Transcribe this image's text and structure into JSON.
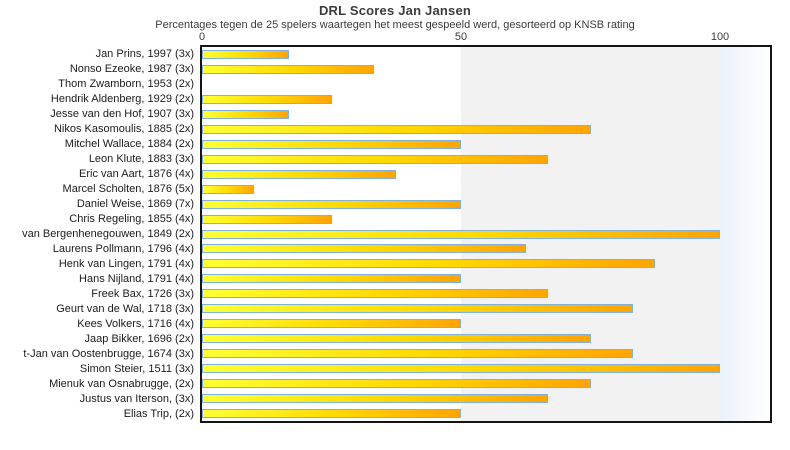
{
  "chart_data": {
    "type": "bar",
    "orientation": "horizontal",
    "title": "DRL Scores Jan Jansen",
    "subtitle": "Percentages tegen de 25 spelers waartegen het meest gespeeld werd, gesorteerd op KNSB rating",
    "categories": [
      "Jan Prins, 1997 (3x)",
      "Nonso Ezeoke, 1987 (3x)",
      "Thom Zwamborn, 1953 (2x)",
      "Hendrik Aldenberg, 1929 (2x)",
      "Jesse van den Hof, 1907 (3x)",
      "Nikos Kasomoulis, 1885 (2x)",
      "Mitchel Wallace, 1884 (2x)",
      "Leon Klute, 1883 (3x)",
      "Eric van Aart, 1876 (4x)",
      "Marcel Scholten, 1876 (5x)",
      "Daniel Weise, 1869 (7x)",
      "Chris Regeling, 1855 (4x)",
      "van Bergenhenegouwen, 1849 (2x)",
      "Laurens Pollmann, 1796 (4x)",
      "Henk van Lingen, 1791 (4x)",
      "Hans Nijland, 1791 (4x)",
      "Freek Bax, 1726 (3x)",
      "Geurt van de Wal, 1718 (3x)",
      "Kees Volkers, 1716 (4x)",
      "Jaap Bikker, 1696 (2x)",
      "t-Jan van Oostenbrugge, 1674 (3x)",
      "Simon Steier, 1511 (3x)",
      "Mienuk van Osnabrugge,  (2x)",
      "Justus van Iterson,  (3x)",
      "Elias Trip,  (2x)"
    ],
    "values": [
      16.7,
      33.3,
      0,
      25,
      16.7,
      75,
      50,
      66.7,
      37.5,
      10,
      50,
      25,
      100,
      62.5,
      87.5,
      50,
      66.7,
      83.3,
      50,
      75,
      83.3,
      100,
      75,
      66.7,
      50
    ],
    "x_ticks": [
      0,
      50,
      100
    ],
    "xlim": [
      0,
      110
    ],
    "xlabel": "",
    "ylabel": "",
    "legend": "none",
    "grid": "band shading: 0-50 white, 50-100 gray, beyond 100 pale blue fade",
    "colors": {
      "bar_gradient_start": "#ffff33",
      "bar_gradient_mid": "#ffd700",
      "bar_gradient_end": "#ffa405",
      "bar_border": "#7fb2dc",
      "band_mid_gray": "#f2f2f2",
      "band_right_blue": "#eaf2fa",
      "plot_border": "#141414",
      "text": "#3c3c3c"
    }
  }
}
